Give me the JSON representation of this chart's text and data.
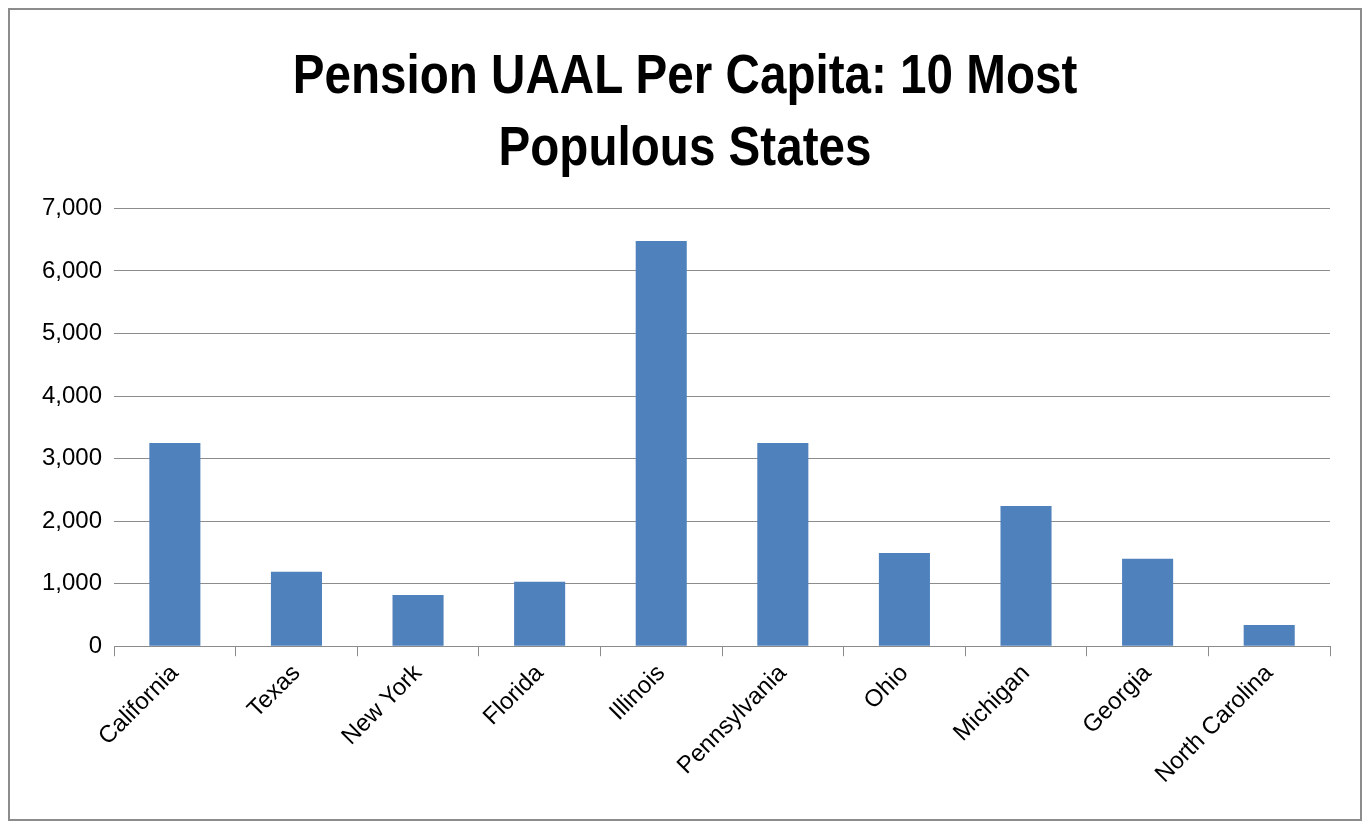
{
  "chart_data": {
    "type": "bar",
    "title": "Pension UAAL Per Capita: 10 Most Populous States",
    "categories": [
      "California",
      "Texas",
      "New York",
      "Florida",
      "Illinois",
      "Pennsylvania",
      "Ohio",
      "Michigan",
      "Georgia",
      "North Carolina"
    ],
    "values": [
      3250,
      1190,
      820,
      1030,
      6480,
      3250,
      1490,
      2240,
      1400,
      340
    ],
    "color": "#4f81bd",
    "ylim": [
      0,
      7000
    ],
    "yticks": [
      0,
      {
        "value": 1000,
        "label": "1,000"
      },
      {
        "value": 2000,
        "label": "2,000"
      },
      {
        "value": 3000,
        "label": "3,000"
      },
      {
        "value": 4000,
        "label": "4,000"
      },
      {
        "value": 5000,
        "label": "5,000"
      },
      {
        "value": 6000,
        "label": "6,000"
      },
      {
        "value": 7000,
        "label": "7,000"
      }
    ],
    "grid": "y",
    "legend": false
  }
}
